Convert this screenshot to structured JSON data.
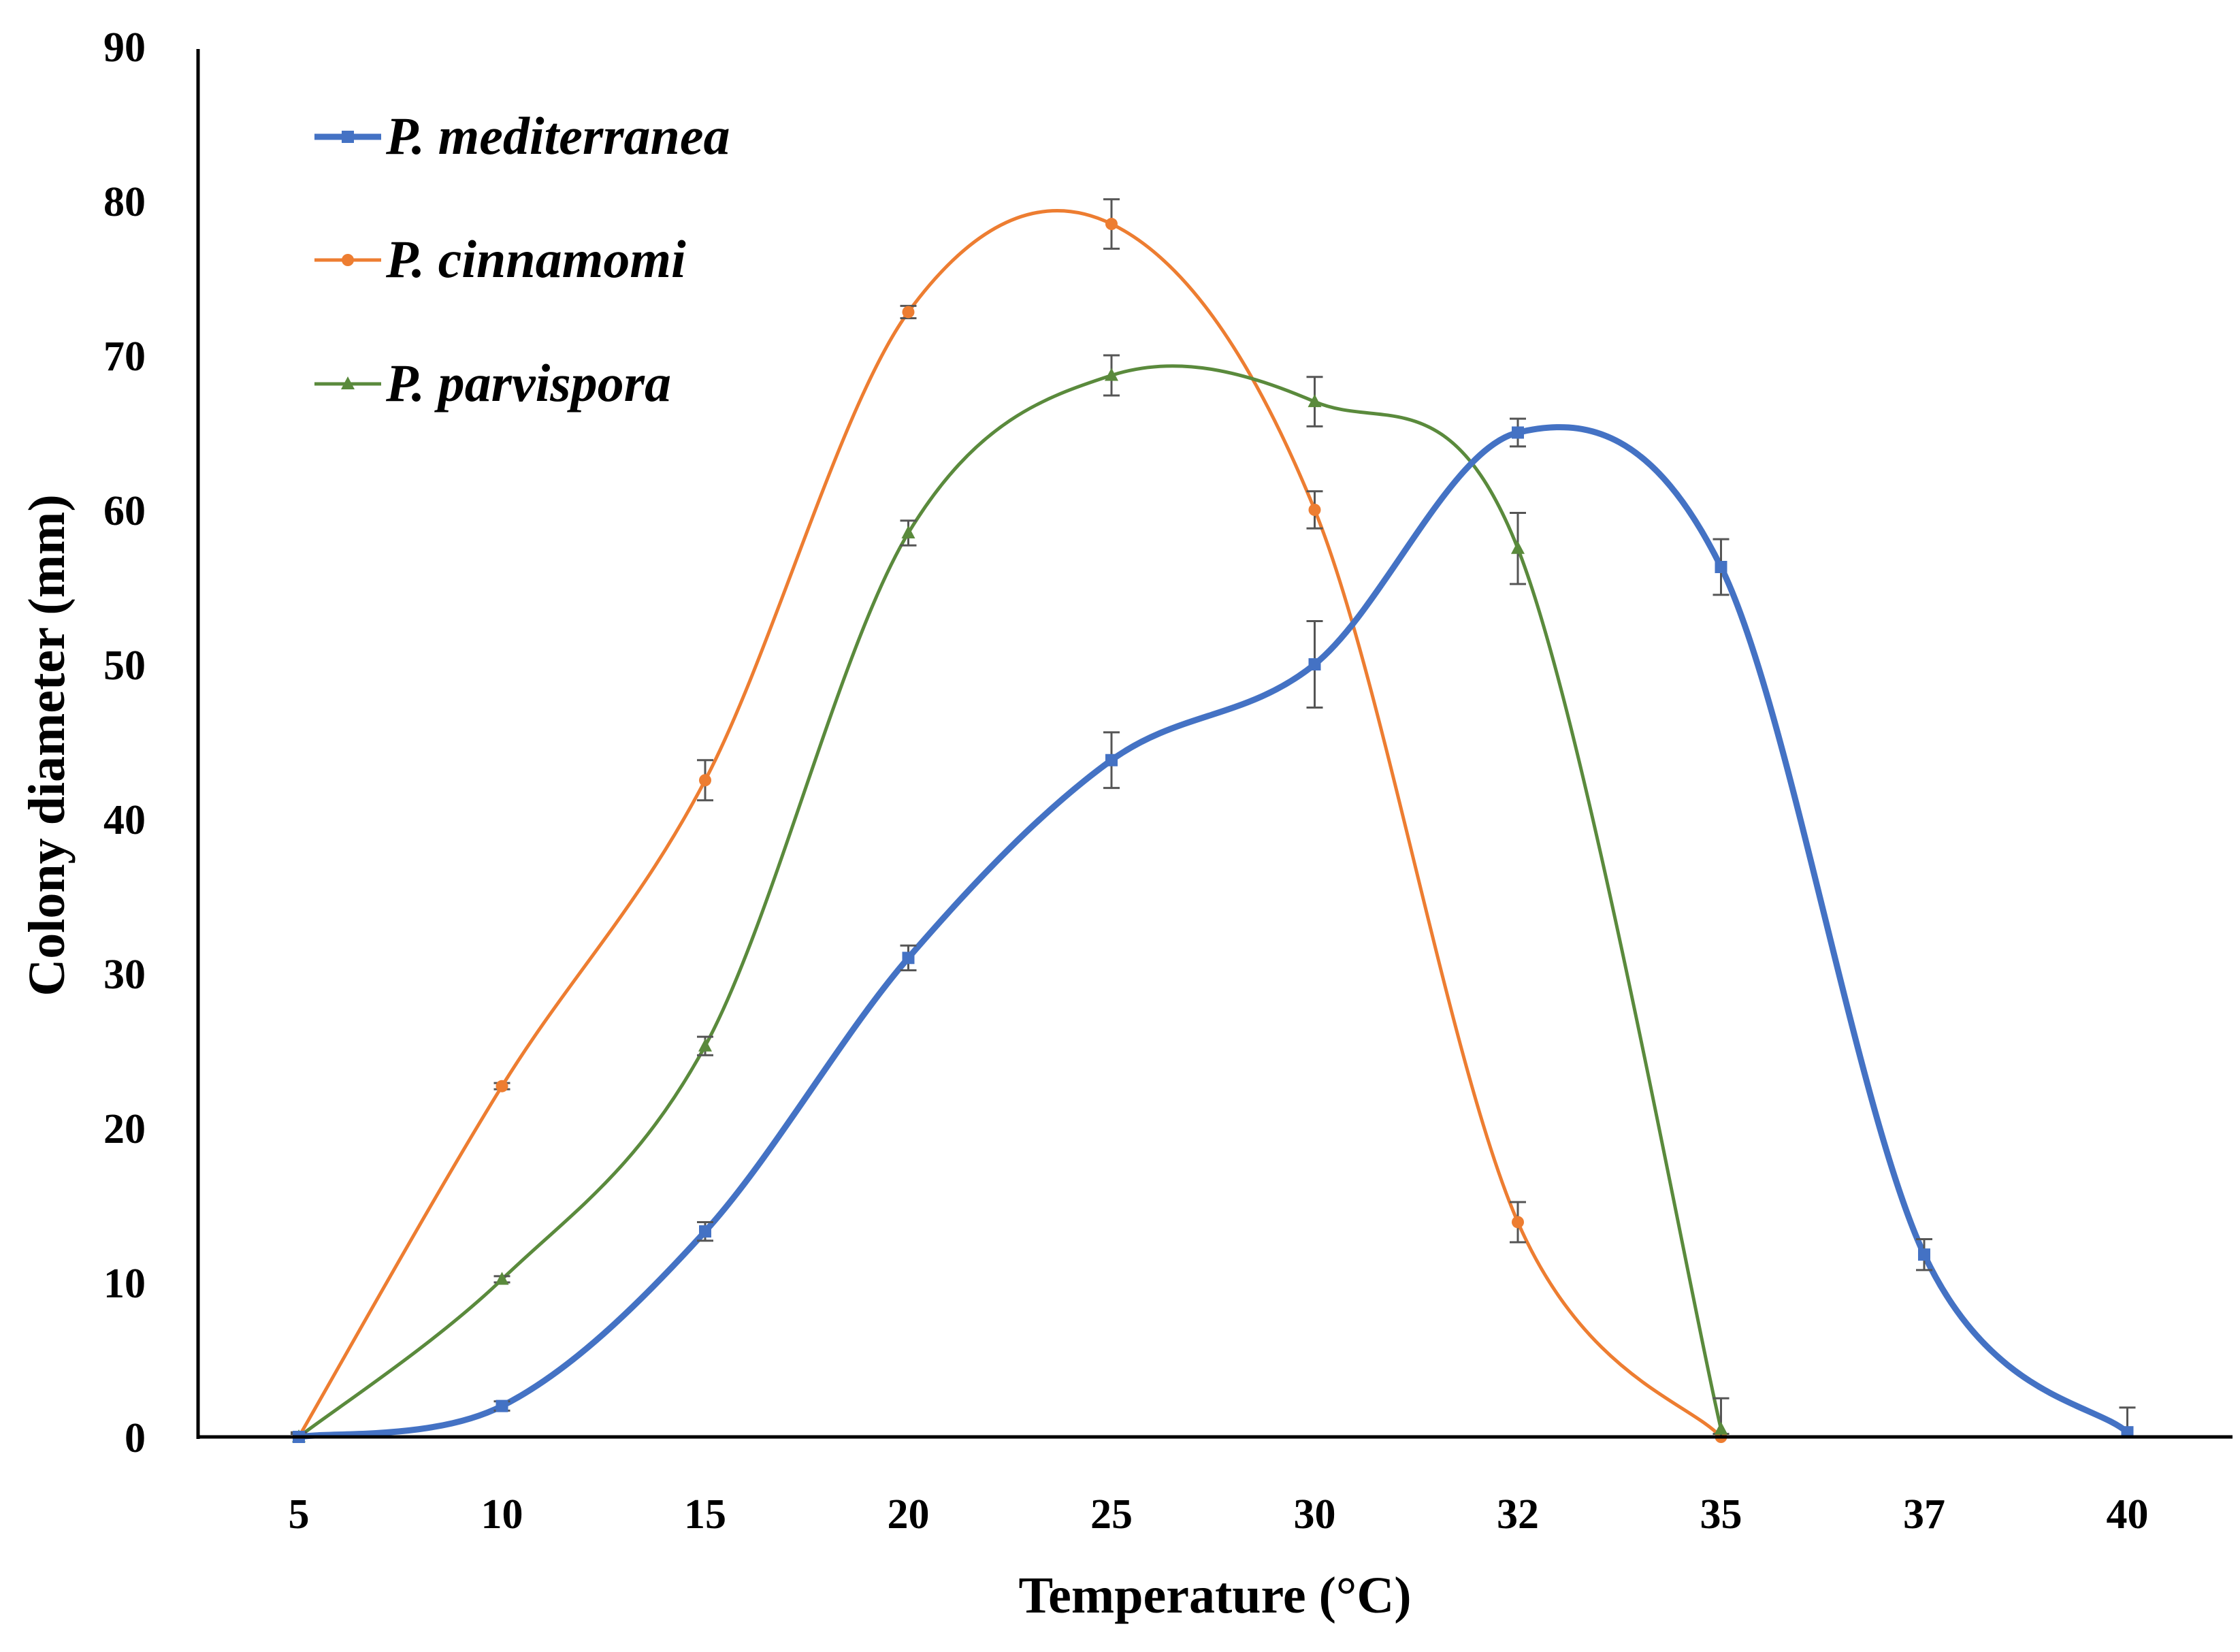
{
  "chart_data": {
    "type": "line",
    "title": "",
    "xlabel": "Temperature (°C)",
    "ylabel": "Colony diameter (mm)",
    "ylim": [
      0,
      90
    ],
    "yticks": [
      0,
      10,
      20,
      30,
      40,
      50,
      60,
      70,
      80,
      90
    ],
    "categories": [
      "5",
      "10",
      "15",
      "20",
      "25",
      "30",
      "32",
      "35",
      "37",
      "40"
    ],
    "grid": false,
    "legend_position": "top-left",
    "series": [
      {
        "name": "P. mediterranea",
        "color": "#4472C4",
        "marker": "square",
        "values": [
          0,
          2,
          13.3,
          31,
          43.8,
          50,
          65,
          56.3,
          11.8,
          0.3
        ],
        "errors": [
          0.3,
          0.3,
          0.6,
          0.8,
          1.8,
          2.8,
          0.9,
          1.8,
          1.0,
          1.6
        ]
      },
      {
        "name": "P. cinnamomi",
        "color": "#ED7D31",
        "marker": "circle",
        "values": [
          0,
          22.7,
          42.5,
          72.8,
          78.5,
          60,
          13.9,
          0,
          null,
          null
        ],
        "errors": [
          0.2,
          0.2,
          1.3,
          0.4,
          1.6,
          1.2,
          1.3,
          0.2,
          null,
          null
        ]
      },
      {
        "name": "P. parvispora",
        "color": "#5A8A3C",
        "marker": "triangle",
        "values": [
          0,
          10.2,
          25.3,
          58.5,
          68.7,
          67,
          57.5,
          0.5,
          null,
          null
        ],
        "errors": [
          0.2,
          0.2,
          0.6,
          0.8,
          1.3,
          1.6,
          2.3,
          2.0,
          null,
          null
        ]
      }
    ]
  }
}
